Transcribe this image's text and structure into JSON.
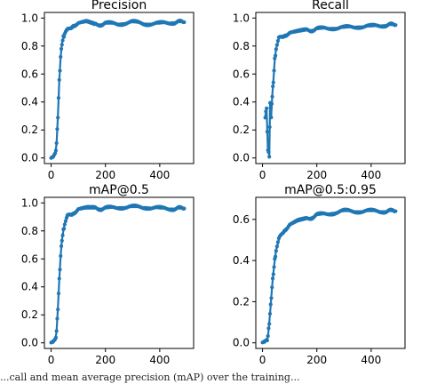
{
  "chart_data": [
    {
      "type": "line",
      "title": "Precision",
      "xlim": [
        0,
        500
      ],
      "ylim": [
        0,
        1.0
      ],
      "xticks": [
        "0",
        "200",
        "400"
      ],
      "yticks": [
        "0.0",
        "0.2",
        "0.4",
        "0.6",
        "0.8",
        "1.0"
      ],
      "grid": false,
      "series": [
        {
          "x": [
            0,
            8,
            15,
            20,
            25,
            30,
            35,
            40,
            45,
            50,
            60,
            70,
            80,
            100,
            130,
            160,
            200,
            250,
            300,
            350,
            400,
            450,
            490
          ],
          "y": [
            0.0,
            0.0,
            0.03,
            0.1,
            0.3,
            0.55,
            0.72,
            0.82,
            0.86,
            0.89,
            0.91,
            0.93,
            0.95,
            0.96,
            0.97,
            0.95,
            0.96,
            0.96,
            0.97,
            0.96,
            0.96,
            0.97,
            0.97
          ]
        }
      ]
    },
    {
      "type": "line",
      "title": "Recall",
      "xlim": [
        0,
        500
      ],
      "ylim": [
        0,
        1.0
      ],
      "xticks": [
        "0",
        "200",
        "400"
      ],
      "yticks": [
        "0.0",
        "0.2",
        "0.4",
        "0.6",
        "0.8",
        "1.0"
      ],
      "grid": false,
      "series": [
        {
          "x": [
            10,
            15,
            20,
            25,
            28,
            32,
            36,
            40,
            45,
            50,
            60,
            70,
            80,
            100,
            130,
            160,
            200,
            250,
            300,
            350,
            400,
            450,
            490
          ],
          "y": [
            0.3,
            0.35,
            0.05,
            0.02,
            0.4,
            0.3,
            0.45,
            0.55,
            0.7,
            0.78,
            0.85,
            0.87,
            0.88,
            0.89,
            0.9,
            0.91,
            0.92,
            0.93,
            0.93,
            0.94,
            0.94,
            0.95,
            0.95
          ]
        }
      ]
    },
    {
      "type": "line",
      "title": "mAP@0.5",
      "xlim": [
        0,
        500
      ],
      "ylim": [
        0,
        1.0
      ],
      "xticks": [
        "0",
        "200",
        "400"
      ],
      "yticks": [
        "0.0",
        "0.2",
        "0.4",
        "0.6",
        "0.8",
        "1.0"
      ],
      "grid": false,
      "series": [
        {
          "x": [
            0,
            8,
            15,
            20,
            25,
            30,
            35,
            40,
            45,
            50,
            60,
            70,
            80,
            100,
            130,
            160,
            200,
            250,
            300,
            350,
            400,
            450,
            490
          ],
          "y": [
            0.0,
            0.0,
            0.02,
            0.08,
            0.25,
            0.45,
            0.62,
            0.74,
            0.8,
            0.85,
            0.9,
            0.92,
            0.93,
            0.95,
            0.96,
            0.96,
            0.96,
            0.97,
            0.97,
            0.97,
            0.96,
            0.96,
            0.96
          ]
        }
      ]
    },
    {
      "type": "line",
      "title": "mAP@0.5:0.95",
      "xlim": [
        0,
        500
      ],
      "ylim": [
        0,
        0.68
      ],
      "xticks": [
        "0",
        "200",
        "400"
      ],
      "yticks": [
        "0.0",
        "0.2",
        "0.4",
        "0.6"
      ],
      "grid": false,
      "series": [
        {
          "x": [
            0,
            8,
            15,
            20,
            25,
            30,
            35,
            40,
            45,
            50,
            60,
            70,
            80,
            100,
            130,
            160,
            200,
            250,
            300,
            350,
            400,
            450,
            490
          ],
          "y": [
            0.0,
            0.0,
            0.01,
            0.03,
            0.1,
            0.18,
            0.27,
            0.34,
            0.4,
            0.45,
            0.5,
            0.53,
            0.55,
            0.57,
            0.59,
            0.6,
            0.62,
            0.63,
            0.64,
            0.64,
            0.64,
            0.64,
            0.64
          ]
        }
      ]
    }
  ],
  "caption": "...call and mean average precision (mAP) over the training..."
}
